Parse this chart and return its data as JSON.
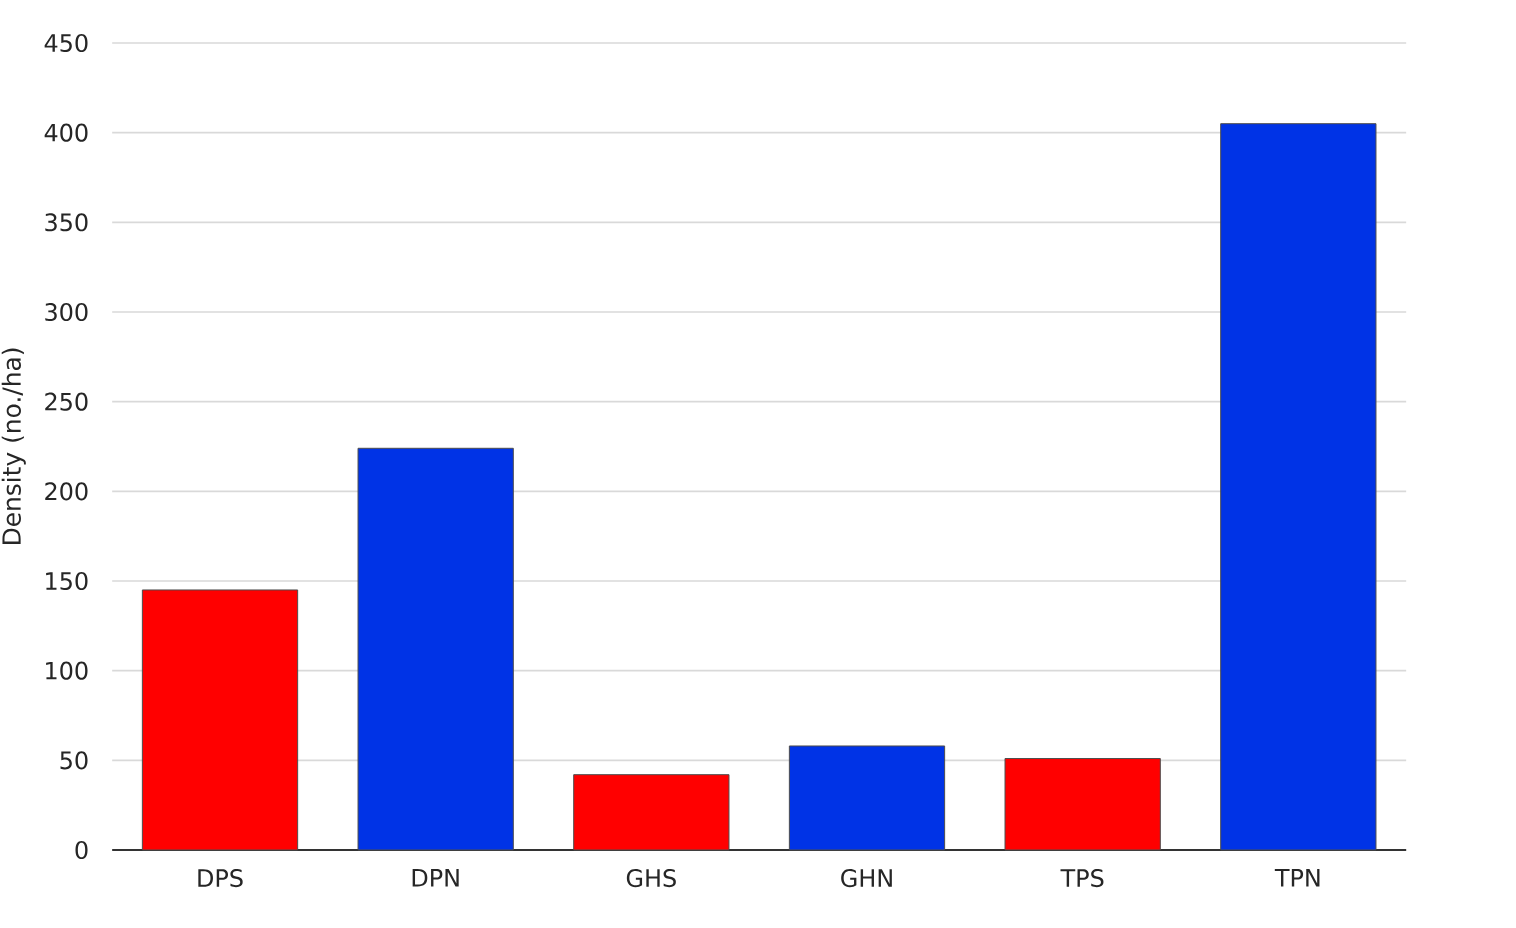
{
  "chart_data": {
    "type": "bar",
    "ylabel": "Density (no./ha)",
    "categories": [
      "DPS",
      "DPN",
      "GHS",
      "GHN",
      "TPS",
      "TPN"
    ],
    "values": [
      145,
      224,
      42,
      58,
      51,
      405
    ],
    "colors": [
      "#ff0000",
      "#0033e6",
      "#ff0000",
      "#0033e6",
      "#ff0000",
      "#0033e6"
    ],
    "ylim": [
      0,
      450
    ],
    "yticks": [
      0,
      50,
      100,
      150,
      200,
      250,
      300,
      350,
      400,
      450
    ],
    "grid": "y"
  }
}
